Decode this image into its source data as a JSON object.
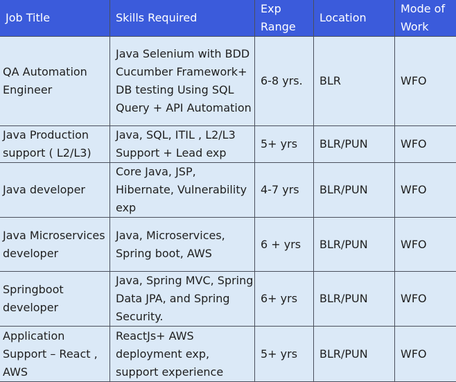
{
  "headers": {
    "job_title": "Job Title",
    "skills": "Skills Required",
    "exp_line1": "Exp",
    "exp_line2": "Range",
    "location": "Location",
    "mode_line1": "Mode of",
    "mode_line2": "Work"
  },
  "rows": [
    {
      "job_title": "QA Automation Engineer",
      "skills": "Java Selenium with BDD Cucumber Framework+ DB testing Using SQL Query + API Automation",
      "exp": "6-8 yrs.",
      "location": "BLR",
      "mode": "WFO"
    },
    {
      "job_title": "Java Production support ( L2/L3)",
      "skills": "Java, SQL, ITIL , L2/L3 Support + Lead exp",
      "exp": "5+ yrs",
      "location": "BLR/PUN",
      "mode": "WFO"
    },
    {
      "job_title": "Java developer",
      "skills": "Core Java, JSP, Hibernate, Vulnerability exp",
      "exp": "4-7 yrs",
      "location": "BLR/PUN",
      "mode": "WFO"
    },
    {
      "job_title": "Java Microservices developer",
      "skills": "Java, Microservices, Spring boot, AWS",
      "exp": "6 + yrs",
      "location": "BLR/PUN",
      "mode": "WFO"
    },
    {
      "job_title": "Springboot developer",
      "skills": "Java, Spring MVC, Spring Data JPA, and Spring Security.",
      "exp": "6+ yrs",
      "location": "BLR/PUN",
      "mode": "WFO"
    },
    {
      "job_title": "Application Support – React , AWS",
      "skills": "ReactJs+ AWS deployment exp, support experience",
      "exp": "5+ yrs",
      "location": "BLR/PUN",
      "mode": "WFO"
    }
  ],
  "colors": {
    "header_bg": "#3b5bdb",
    "header_text": "#ffffff",
    "cell_bg": "#dbe9f7",
    "border": "#4a4f5c"
  }
}
